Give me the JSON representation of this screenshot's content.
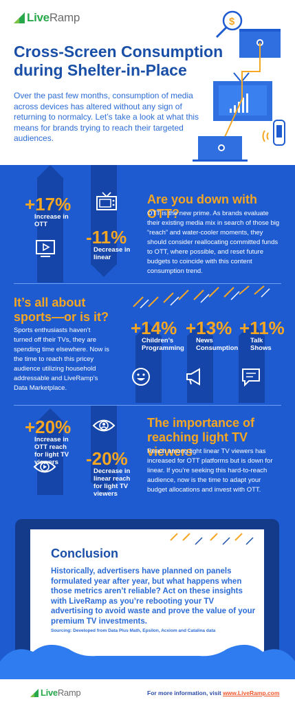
{
  "brand": {
    "name_live": "Live",
    "name_ramp": "Ramp",
    "color_green": "#27a84a"
  },
  "colors": {
    "blue_bg": "#1e5bd0",
    "blue_dark": "#1545a8",
    "orange": "#f5a623",
    "navy": "#1a4fa8"
  },
  "header": {
    "title": "Cross-Screen Consumption during Shelter-in-Place",
    "intro": "Over the past few months, consumption of media across devices has altered without any sign of returning to normalcy. Let’s take a look at what this means for brands trying to reach their targeted audiences."
  },
  "ott": {
    "stat1_value": "+17%",
    "stat1_label": "Increase in OTT",
    "stat2_value": "-11%",
    "stat2_label": "Decrease in linear",
    "heading": "Are you down with OTT?",
    "text": "OTT is the new prime. As brands evaluate their existing media mix in search of those big “reach” and water-cooler moments, they should consider reallocating committed funds to OTT, where possible, and reset future budgets to coincide with this content consumption trend."
  },
  "sports": {
    "heading": "It’s all about sports—or is it?",
    "text": "Sports enthusiasts haven’t turned off their TVs, they are spending time elsewhere. Now is the time to reach this pricey audience utilizing household addressable and LiveRamp’s Data Marketplace.",
    "items": [
      {
        "value": "+14%",
        "label": "Children’s Programming",
        "icon": "smiley-icon"
      },
      {
        "value": "+13%",
        "label": "News Consumption",
        "icon": "megaphone-icon"
      },
      {
        "value": "+11%",
        "label": "Talk Shows",
        "icon": "chat-icon"
      }
    ]
  },
  "light": {
    "stat1_value": "+20%",
    "stat1_label": "Increase in OTT reach for light TV viewers",
    "stat2_value": "-20%",
    "stat2_label": "Decrease in linear reach for light TV viewers",
    "heading": "The importance of reaching light TV viewers",
    "text": "Reach among light linear TV viewers has increased for OTT platforms but is down for linear. If you’re seeking this hard-to-reach audience, now is the time to adapt your budget allocations and invest with OTT."
  },
  "conclusion": {
    "title": "Conclusion",
    "text": "Historically, advertisers have planned on panels formulated year after year, but what happens when those metrics aren’t reliable? Act on these insights with LiveRamp as you’re rebooting your TV advertising to avoid waste and prove the value of your premium TV investments.",
    "source": "Sourcing: Developed from Data Plus Math, Epsilon, Acxiom and Catalina data"
  },
  "footer": {
    "info": "For more information, visit",
    "link": "www.LiveRamp.com"
  }
}
